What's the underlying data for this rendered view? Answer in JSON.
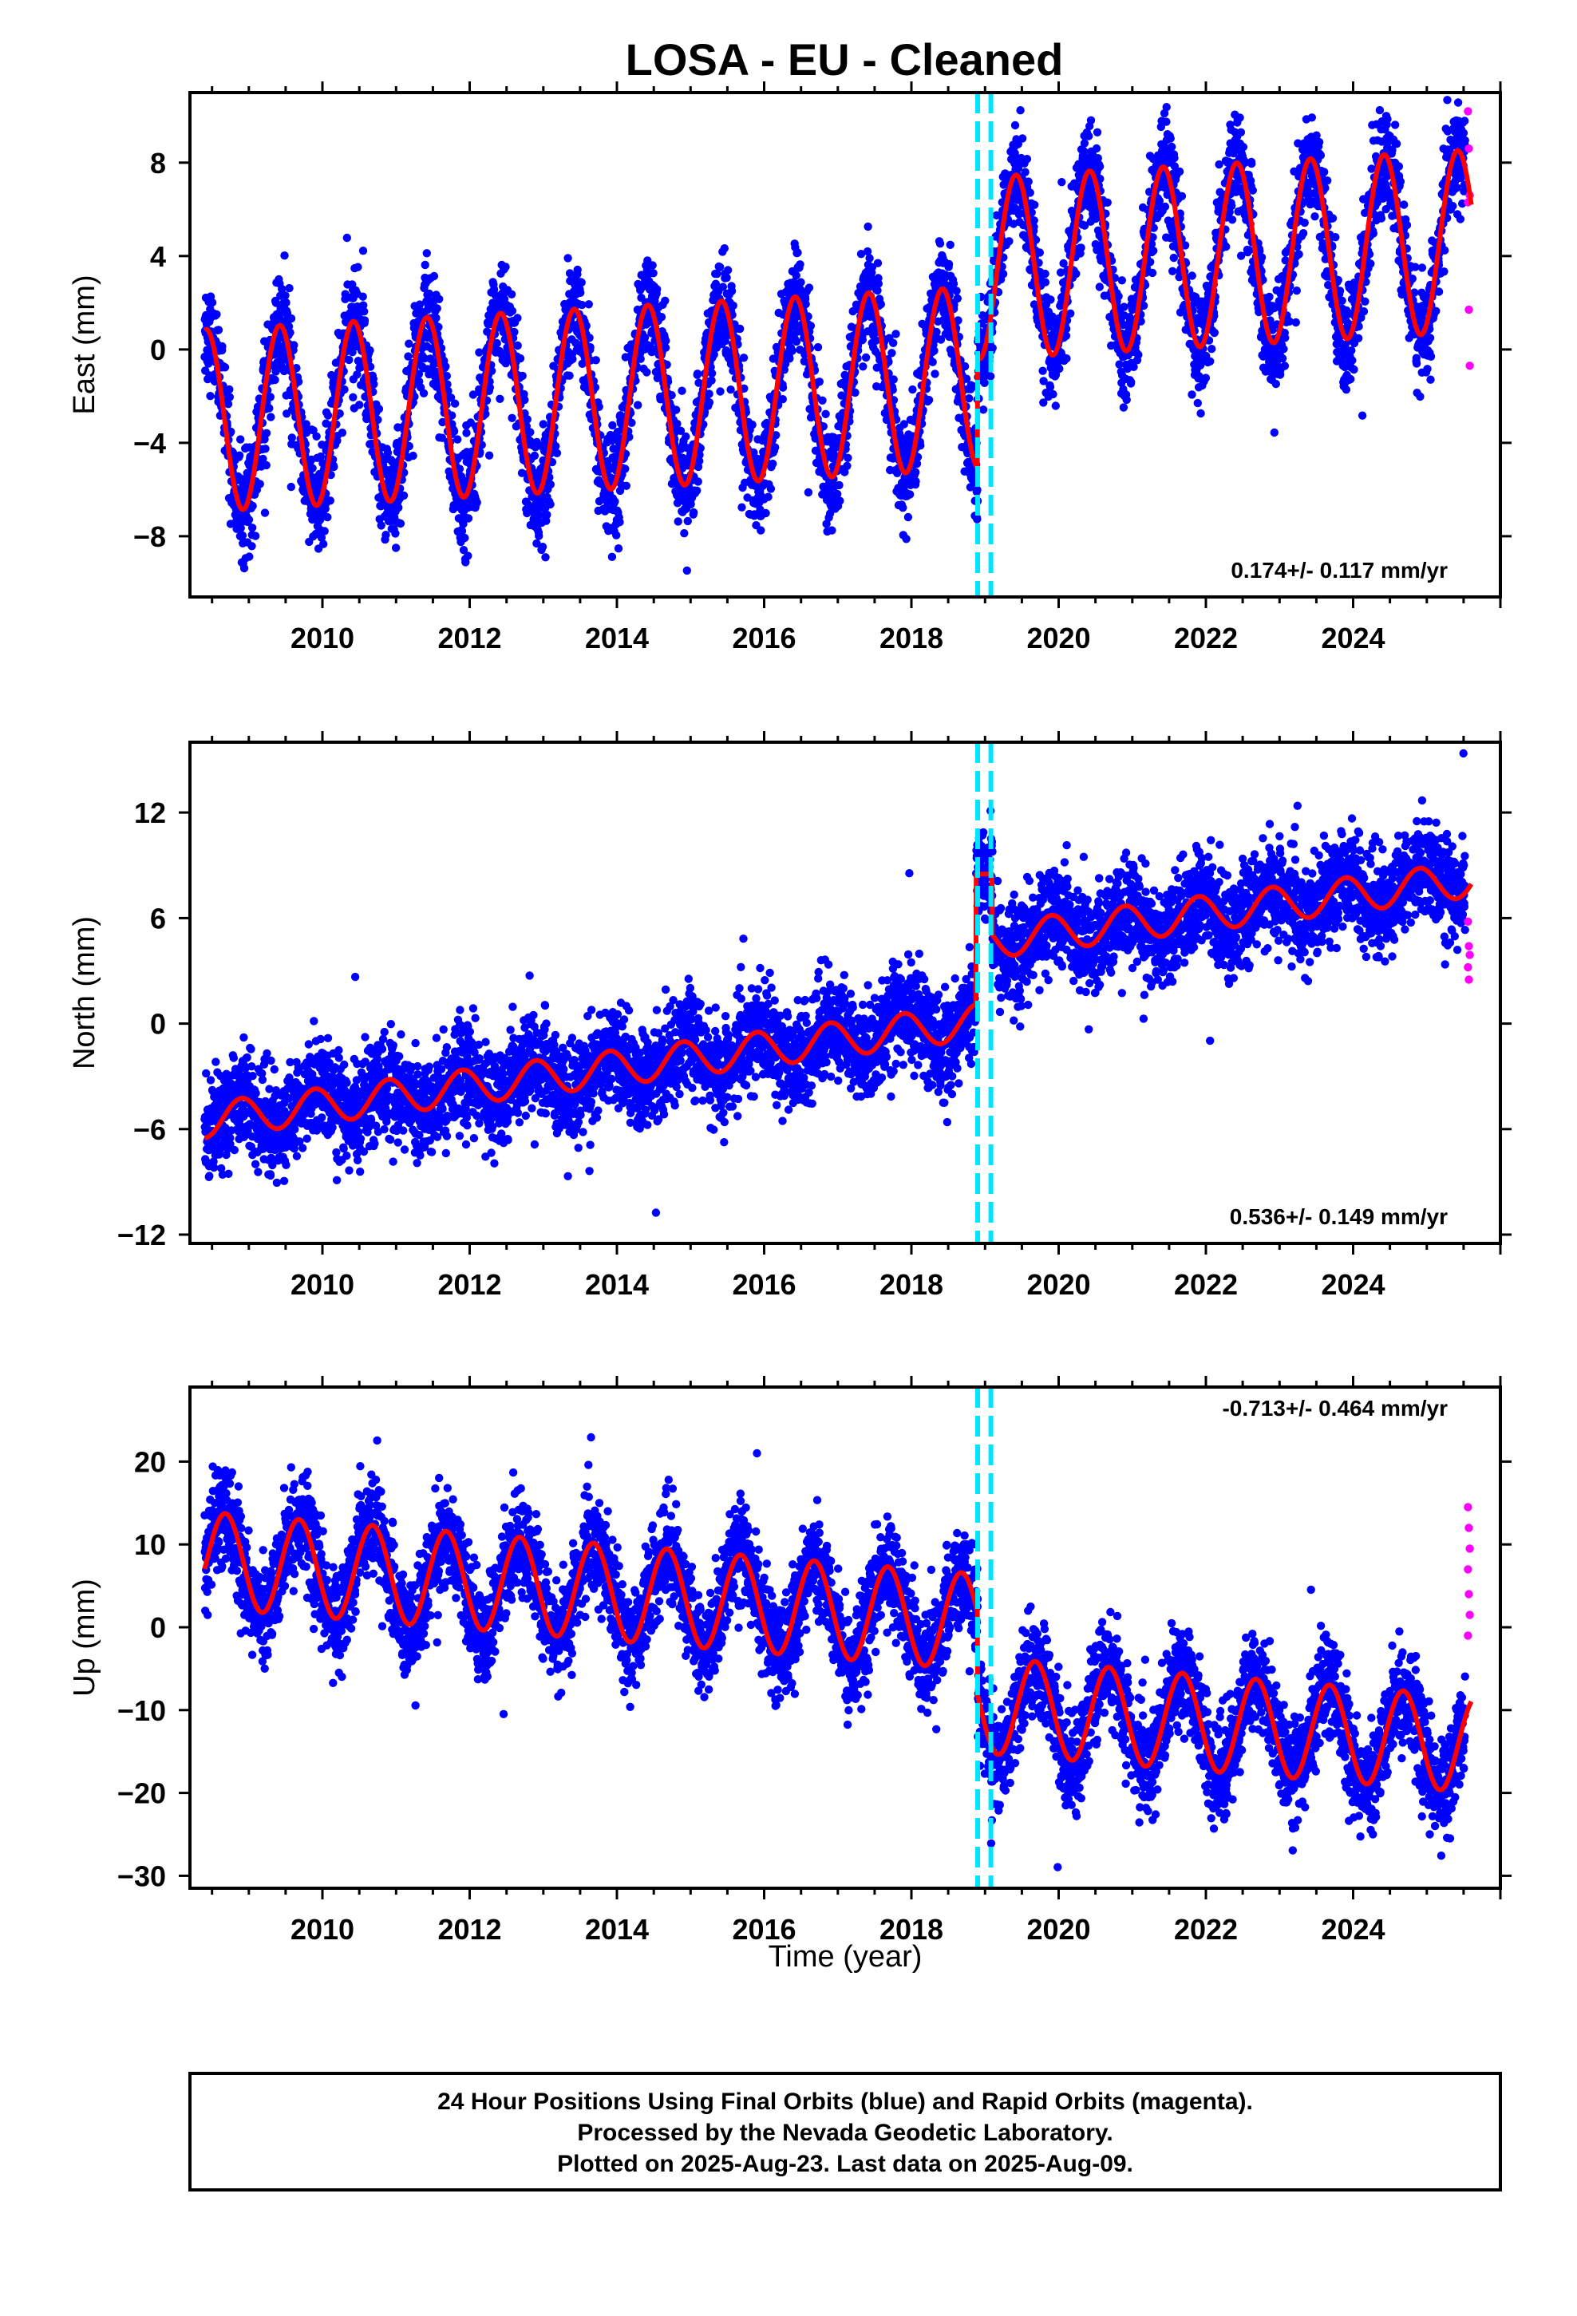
{
  "colors": {
    "final_orbits": "#0000ff",
    "rapid_orbits": "#ff00ff",
    "model": "#ff0000",
    "offset_marker": "#00e5ff",
    "frame": "#000000"
  },
  "footer": {
    "line1": "24 Hour Positions Using Final Orbits (blue) and Rapid Orbits (magenta).",
    "line2": "Processed by the Nevada Geodetic Laboratory.",
    "line3": "Plotted on 2025-Aug-23. Last data on 2025-Aug-09."
  },
  "chart_data": {
    "type": "scatter",
    "title": "LOSA  - EU - Cleaned",
    "xlabel": "Time (year)",
    "xlim": [
      2008.2,
      2026.0
    ],
    "x_ticks": [
      2010,
      2012,
      2014,
      2016,
      2018,
      2020,
      2022,
      2024
    ],
    "x_tick_labels": [
      "2010",
      "2012",
      "2014",
      "2016",
      "2018",
      "2020",
      "2022",
      "2024"
    ],
    "data_start": 2008.4,
    "rapid_start": 2025.52,
    "data_end": 2025.61,
    "offset_epochs": [
      2018.9,
      2019.08
    ],
    "legend": "none",
    "grid": false,
    "panels": [
      {
        "name": "East",
        "ylabel": "East (mm)",
        "ylim": [
          -10.6,
          11.0
        ],
        "y_ticks": [
          -8,
          -4,
          0,
          4,
          8
        ],
        "y_tick_labels": [
          "−8",
          "−4",
          "0",
          "4",
          "8"
        ],
        "rate_label": "0.174+/- 0.117 mm/yr",
        "rate_position": "bottom-right",
        "model": {
          "pre_offset": -1.55,
          "post_offset": 3.15,
          "rate": 0.174,
          "ref_year": 2017.0,
          "annual_amplitude": 3.9,
          "amplitude_trend": 0.0,
          "annual_phase_peak": 0.42,
          "noise_sd": 1.1
        },
        "rapid_values": [
          10.2,
          8.6,
          6.6,
          6.3,
          1.7,
          -0.7
        ]
      },
      {
        "name": "North",
        "ylabel": "North (mm)",
        "ylim": [
          -12.5,
          16.0
        ],
        "y_ticks": [
          -12,
          -6,
          0,
          6,
          12
        ],
        "y_tick_labels": [
          "−12",
          "−6",
          "0",
          "6",
          "12"
        ],
        "rate_label": "0.536+/- 0.149 mm/yr",
        "rate_position": "bottom-right",
        "model": {
          "pre_offset": -0.9,
          "post_offset": 3.6,
          "rate": 0.536,
          "ref_year": 2017.0,
          "annual_amplitude": 1.0,
          "amplitude_trend": 0.0,
          "annual_phase_peak": 0.9,
          "noise_sd": 1.4,
          "transient": {
            "start": 2018.88,
            "end": 2019.1,
            "value": 8.5
          }
        },
        "rapid_values": [
          5.8,
          4.4,
          3.9,
          3.2,
          2.5
        ]
      },
      {
        "name": "Up",
        "ylabel": "Up (mm)",
        "ylim": [
          -31.5,
          29.0
        ],
        "y_ticks": [
          -30,
          -20,
          -10,
          0,
          10,
          20
        ],
        "y_tick_labels": [
          "−30",
          "−20",
          "−10",
          "0",
          "10",
          "20"
        ],
        "rate_label": "-0.713+/- 0.464 mm/yr",
        "rate_position": "top-right",
        "model": {
          "pre_offset": 2.0,
          "post_offset": -8.0,
          "rate": -0.713,
          "ref_year": 2017.0,
          "annual_amplitude": 5.8,
          "amplitude_trend": 0.0,
          "annual_phase_peak": 0.68,
          "noise_sd": 3.0
        },
        "rapid_values": [
          14.5,
          12.0,
          9.5,
          7.0,
          4.0,
          1.5,
          -1.0
        ]
      }
    ]
  }
}
